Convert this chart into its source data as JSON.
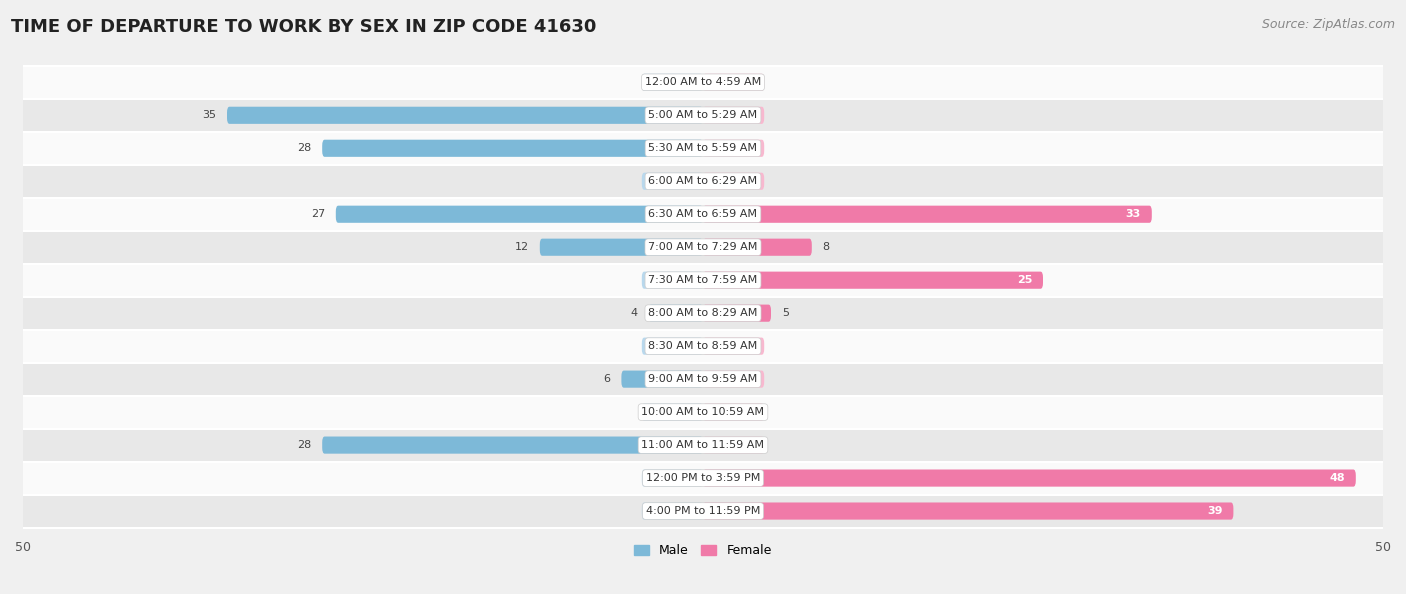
{
  "title": "TIME OF DEPARTURE TO WORK BY SEX IN ZIP CODE 41630",
  "source": "Source: ZipAtlas.com",
  "categories": [
    "12:00 AM to 4:59 AM",
    "5:00 AM to 5:29 AM",
    "5:30 AM to 5:59 AM",
    "6:00 AM to 6:29 AM",
    "6:30 AM to 6:59 AM",
    "7:00 AM to 7:29 AM",
    "7:30 AM to 7:59 AM",
    "8:00 AM to 8:29 AM",
    "8:30 AM to 8:59 AM",
    "9:00 AM to 9:59 AM",
    "10:00 AM to 10:59 AM",
    "11:00 AM to 11:59 AM",
    "12:00 PM to 3:59 PM",
    "4:00 PM to 11:59 PM"
  ],
  "male_values": [
    0,
    35,
    28,
    0,
    27,
    12,
    0,
    4,
    0,
    6,
    0,
    28,
    0,
    0
  ],
  "female_values": [
    0,
    0,
    0,
    0,
    33,
    8,
    25,
    5,
    0,
    0,
    0,
    0,
    48,
    39
  ],
  "male_color": "#7db9d8",
  "female_color": "#f07aa8",
  "male_color_light": "#b8d8ed",
  "female_color_light": "#f8b8cf",
  "male_label": "Male",
  "female_label": "Female",
  "axis_max": 50,
  "bg_color": "#f0f0f0",
  "row_color_light": "#fafafa",
  "row_color_dark": "#e8e8e8",
  "title_fontsize": 13,
  "source_fontsize": 9,
  "cat_fontsize": 8,
  "value_fontsize": 8,
  "legend_fontsize": 9,
  "tick_fontsize": 9
}
